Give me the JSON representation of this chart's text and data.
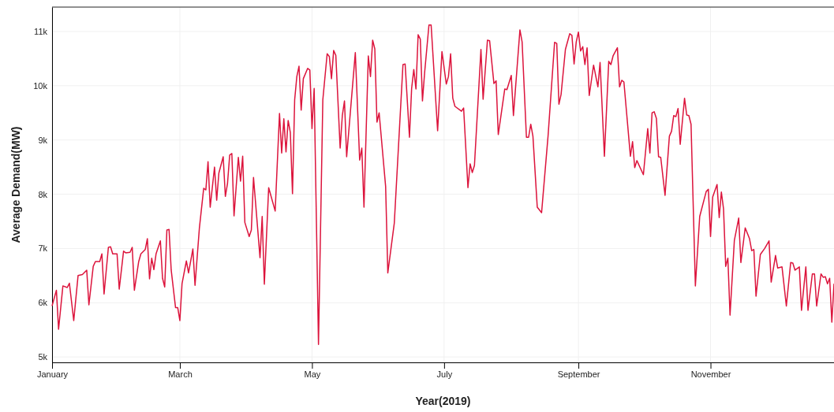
{
  "chart_data": {
    "type": "line",
    "xlabel": "Year(2019)",
    "ylabel": "Average Demand(MW)",
    "grid": true,
    "marker": "none",
    "line_style": "solid",
    "xlim": [
      "2019-01-01",
      "2019-12-28"
    ],
    "ylim": [
      4900,
      11450
    ],
    "xticks": [
      {
        "value": "2019-01-01",
        "label": "January"
      },
      {
        "value": "2019-03-01",
        "label": "March"
      },
      {
        "value": "2019-05-01",
        "label": "May"
      },
      {
        "value": "2019-07-01",
        "label": "July"
      },
      {
        "value": "2019-09-01",
        "label": "September"
      },
      {
        "value": "2019-11-01",
        "label": "November"
      }
    ],
    "yticks": [
      {
        "value": 5000,
        "label": "5k"
      },
      {
        "value": 6000,
        "label": "6k"
      },
      {
        "value": 7000,
        "label": "7k"
      },
      {
        "value": 8000,
        "label": "8k"
      },
      {
        "value": 9000,
        "label": "9k"
      },
      {
        "value": 10000,
        "label": "10k"
      },
      {
        "value": 11000,
        "label": "11k"
      }
    ],
    "x": [
      "2019-01-01",
      "2019-01-03",
      "2019-01-04",
      "2019-01-06",
      "2019-01-08",
      "2019-01-09",
      "2019-01-11",
      "2019-01-13",
      "2019-01-15",
      "2019-01-17",
      "2019-01-18",
      "2019-01-20",
      "2019-01-21",
      "2019-01-23",
      "2019-01-24",
      "2019-01-25",
      "2019-01-27",
      "2019-01-28",
      "2019-01-29",
      "2019-01-31",
      "2019-02-01",
      "2019-02-03",
      "2019-02-04",
      "2019-02-06",
      "2019-02-07",
      "2019-02-08",
      "2019-02-10",
      "2019-02-11",
      "2019-02-13",
      "2019-02-14",
      "2019-02-15",
      "2019-02-16",
      "2019-02-17",
      "2019-02-18",
      "2019-02-20",
      "2019-02-21",
      "2019-02-22",
      "2019-02-23",
      "2019-02-24",
      "2019-02-25",
      "2019-02-27",
      "2019-02-28",
      "2019-03-01",
      "2019-03-02",
      "2019-03-04",
      "2019-03-05",
      "2019-03-07",
      "2019-03-08",
      "2019-03-10",
      "2019-03-12",
      "2019-03-13",
      "2019-03-14",
      "2019-03-15",
      "2019-03-17",
      "2019-03-18",
      "2019-03-19",
      "2019-03-21",
      "2019-03-22",
      "2019-03-23",
      "2019-03-24",
      "2019-03-25",
      "2019-03-26",
      "2019-03-28",
      "2019-03-29",
      "2019-03-30",
      "2019-03-31",
      "2019-04-02",
      "2019-04-03",
      "2019-04-04",
      "2019-04-07",
      "2019-04-08",
      "2019-04-09",
      "2019-04-11",
      "2019-04-14",
      "2019-04-16",
      "2019-04-17",
      "2019-04-18",
      "2019-04-19",
      "2019-04-20",
      "2019-04-21",
      "2019-04-22",
      "2019-04-23",
      "2019-04-24",
      "2019-04-25",
      "2019-04-26",
      "2019-04-27",
      "2019-04-29",
      "2019-04-30",
      "2019-05-01",
      "2019-05-02",
      "2019-05-04",
      "2019-05-06",
      "2019-05-08",
      "2019-05-09",
      "2019-05-10",
      "2019-05-11",
      "2019-05-12",
      "2019-05-14",
      "2019-05-15",
      "2019-05-16",
      "2019-05-17",
      "2019-05-21",
      "2019-05-23",
      "2019-05-24",
      "2019-05-25",
      "2019-05-27",
      "2019-05-28",
      "2019-05-29",
      "2019-05-30",
      "2019-05-31",
      "2019-06-01",
      "2019-06-04",
      "2019-06-05",
      "2019-06-08",
      "2019-06-12",
      "2019-06-13",
      "2019-06-15",
      "2019-06-16",
      "2019-06-17",
      "2019-06-18",
      "2019-06-19",
      "2019-06-20",
      "2019-06-21",
      "2019-06-22",
      "2019-06-24",
      "2019-06-25",
      "2019-06-28",
      "2019-06-30",
      "2019-07-02",
      "2019-07-03",
      "2019-07-04",
      "2019-07-05",
      "2019-07-06",
      "2019-07-09",
      "2019-07-10",
      "2019-07-12",
      "2019-07-13",
      "2019-07-14",
      "2019-07-15",
      "2019-07-18",
      "2019-07-19",
      "2019-07-21",
      "2019-07-22",
      "2019-07-24",
      "2019-07-25",
      "2019-07-26",
      "2019-07-29",
      "2019-07-30",
      "2019-08-01",
      "2019-08-02",
      "2019-08-05",
      "2019-08-06",
      "2019-08-08",
      "2019-08-09",
      "2019-08-10",
      "2019-08-11",
      "2019-08-13",
      "2019-08-15",
      "2019-08-18",
      "2019-08-21",
      "2019-08-22",
      "2019-08-23",
      "2019-08-24",
      "2019-08-26",
      "2019-08-28",
      "2019-08-29",
      "2019-08-30",
      "2019-08-31",
      "2019-09-01",
      "2019-09-02",
      "2019-09-03",
      "2019-09-04",
      "2019-09-05",
      "2019-09-06",
      "2019-09-08",
      "2019-09-10",
      "2019-09-11",
      "2019-09-13",
      "2019-09-15",
      "2019-09-16",
      "2019-09-17",
      "2019-09-19",
      "2019-09-20",
      "2019-09-21",
      "2019-09-22",
      "2019-09-25",
      "2019-09-26",
      "2019-09-27",
      "2019-09-28",
      "2019-10-01",
      "2019-10-03",
      "2019-10-04",
      "2019-10-05",
      "2019-10-06",
      "2019-10-07",
      "2019-10-08",
      "2019-10-09",
      "2019-10-11",
      "2019-10-13",
      "2019-10-14",
      "2019-10-15",
      "2019-10-16",
      "2019-10-17",
      "2019-10-18",
      "2019-10-20",
      "2019-10-21",
      "2019-10-22",
      "2019-10-23",
      "2019-10-25",
      "2019-10-27",
      "2019-10-30",
      "2019-10-31",
      "2019-11-01",
      "2019-11-02",
      "2019-11-04",
      "2019-11-05",
      "2019-11-06",
      "2019-11-07",
      "2019-11-08",
      "2019-11-09",
      "2019-11-10",
      "2019-11-12",
      "2019-11-14",
      "2019-11-15",
      "2019-11-17",
      "2019-11-19",
      "2019-11-20",
      "2019-11-21",
      "2019-11-22",
      "2019-11-24",
      "2019-11-26",
      "2019-11-28",
      "2019-11-29",
      "2019-12-01",
      "2019-12-02",
      "2019-12-04",
      "2019-12-06",
      "2019-12-08",
      "2019-12-09",
      "2019-12-10",
      "2019-12-12",
      "2019-12-13",
      "2019-12-15",
      "2019-12-16",
      "2019-12-18",
      "2019-12-19",
      "2019-12-20",
      "2019-12-22",
      "2019-12-23",
      "2019-12-24",
      "2019-12-25",
      "2019-12-26",
      "2019-12-27",
      "2019-12-28"
    ],
    "series": [
      {
        "color": "#dc143c",
        "values": [
          5940,
          6230,
          5510,
          6310,
          6280,
          6360,
          5670,
          6500,
          6520,
          6600,
          5960,
          6670,
          6760,
          6760,
          6900,
          6160,
          7020,
          7030,
          6900,
          6900,
          6250,
          6950,
          6920,
          6930,
          7020,
          6230,
          6760,
          6900,
          6980,
          7180,
          6440,
          6820,
          6610,
          6900,
          7140,
          6450,
          6290,
          7340,
          7350,
          6600,
          5910,
          5910,
          5670,
          6350,
          6770,
          6550,
          6990,
          6320,
          7370,
          8110,
          8080,
          8600,
          7760,
          8500,
          7890,
          8390,
          8690,
          7960,
          8200,
          8720,
          8750,
          7600,
          8680,
          8240,
          8700,
          7480,
          7220,
          7340,
          8310,
          6830,
          7590,
          6340,
          8120,
          7690,
          9490,
          8760,
          9390,
          8780,
          9360,
          9140,
          8010,
          9740,
          10170,
          10360,
          9550,
          10130,
          10320,
          10290,
          9210,
          9950,
          5230,
          9740,
          10590,
          10540,
          10130,
          10650,
          10560,
          8850,
          9450,
          9720,
          8690,
          10610,
          8630,
          8850,
          7760,
          10550,
          10170,
          10840,
          10680,
          9330,
          9500,
          8140,
          6550,
          7470,
          10390,
          10400,
          9050,
          9950,
          10300,
          9940,
          10940,
          10860,
          9720,
          10240,
          11120,
          11120,
          9170,
          10630,
          10030,
          10170,
          10590,
          9770,
          9620,
          9530,
          9590,
          8120,
          8560,
          8400,
          8530,
          10670,
          9750,
          10840,
          10830,
          10040,
          10090,
          9100,
          9940,
          9930,
          10190,
          9450,
          11030,
          10810,
          9050,
          9050,
          9290,
          9070,
          7760,
          7660,
          9080,
          10800,
          10780,
          9660,
          9840,
          10670,
          10960,
          10930,
          10400,
          10810,
          10990,
          10640,
          10720,
          10390,
          10700,
          9820,
          10380,
          9980,
          10430,
          8700,
          10450,
          10390,
          10550,
          10700,
          9980,
          10100,
          10070,
          8700,
          8970,
          8490,
          8620,
          8360,
          9210,
          8760,
          9500,
          9520,
          9400,
          8690,
          8680,
          7980,
          9070,
          9160,
          9450,
          9430,
          9580,
          8920,
          9770,
          9460,
          9450,
          9290,
          6310,
          7590,
          8050,
          8090,
          7220,
          7950,
          8180,
          7570,
          8040,
          7730,
          6670,
          6820,
          5770,
          7150,
          7560,
          6740,
          7380,
          7180,
          6960,
          6980,
          6120,
          6890,
          7000,
          7140,
          6380,
          6870,
          6640,
          6660,
          5940,
          6740,
          6730,
          6600,
          6660,
          5860,
          6660,
          5860,
          6530,
          6530,
          5940,
          6530,
          6470,
          6480,
          6350,
          6450,
          5640,
          6350
        ]
      }
    ]
  }
}
